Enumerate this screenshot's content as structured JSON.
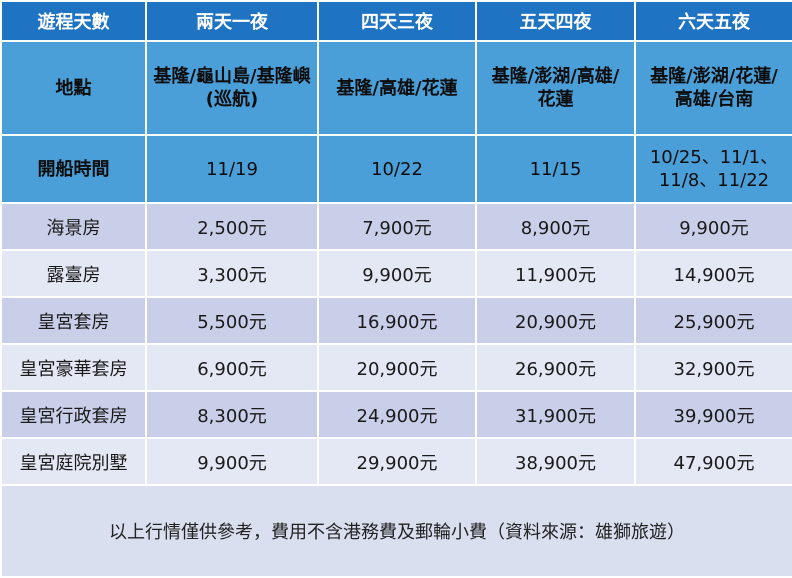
{
  "headers": [
    "遊程天數",
    "兩天一夜",
    "四天三夜",
    "五天四夜",
    "六天五夜"
  ],
  "location_row": {
    "label": "地點",
    "values": [
      "基隆/龜山島/基隆嶼\n(巡航)",
      "基隆/高雄/花蓮",
      "基隆/澎湖/高雄/\n花蓮",
      "基隆/澎湖/花蓮/\n高雄/台南"
    ]
  },
  "departure_row": {
    "label": "開船時間",
    "values": [
      "11/19",
      "10/22",
      "11/15",
      "10/25、11/1、\n11/8、11/22"
    ]
  },
  "room_rows": [
    {
      "room": "海景房",
      "prices": [
        "2,500元",
        "7,900元",
        "8,900元",
        "9,900元"
      ]
    },
    {
      "room": "露臺房",
      "prices": [
        "3,300元",
        "9,900元",
        "11,900元",
        "14,900元"
      ]
    },
    {
      "room": "皇宮套房",
      "prices": [
        "5,500元",
        "16,900元",
        "20,900元",
        "25,900元"
      ]
    },
    {
      "room": "皇宮豪華套房",
      "prices": [
        "6,900元",
        "20,900元",
        "26,900元",
        "32,900元"
      ]
    },
    {
      "room": "皇宮行政套房",
      "prices": [
        "8,300元",
        "24,900元",
        "31,900元",
        "39,900元"
      ]
    },
    {
      "room": "皇宮庭院別墅",
      "prices": [
        "9,900元",
        "29,900元",
        "38,900元",
        "47,900元"
      ]
    }
  ],
  "footnote": "以上行情僅供參考，費用不含港務費及郵輪小費（資料來源：雄獅旅遊）",
  "colors": {
    "header_bg": "#1e73c2",
    "info_bg": "#4a9fd8",
    "row_odd": "#c9cfe9",
    "row_even": "#e4e7f4"
  }
}
